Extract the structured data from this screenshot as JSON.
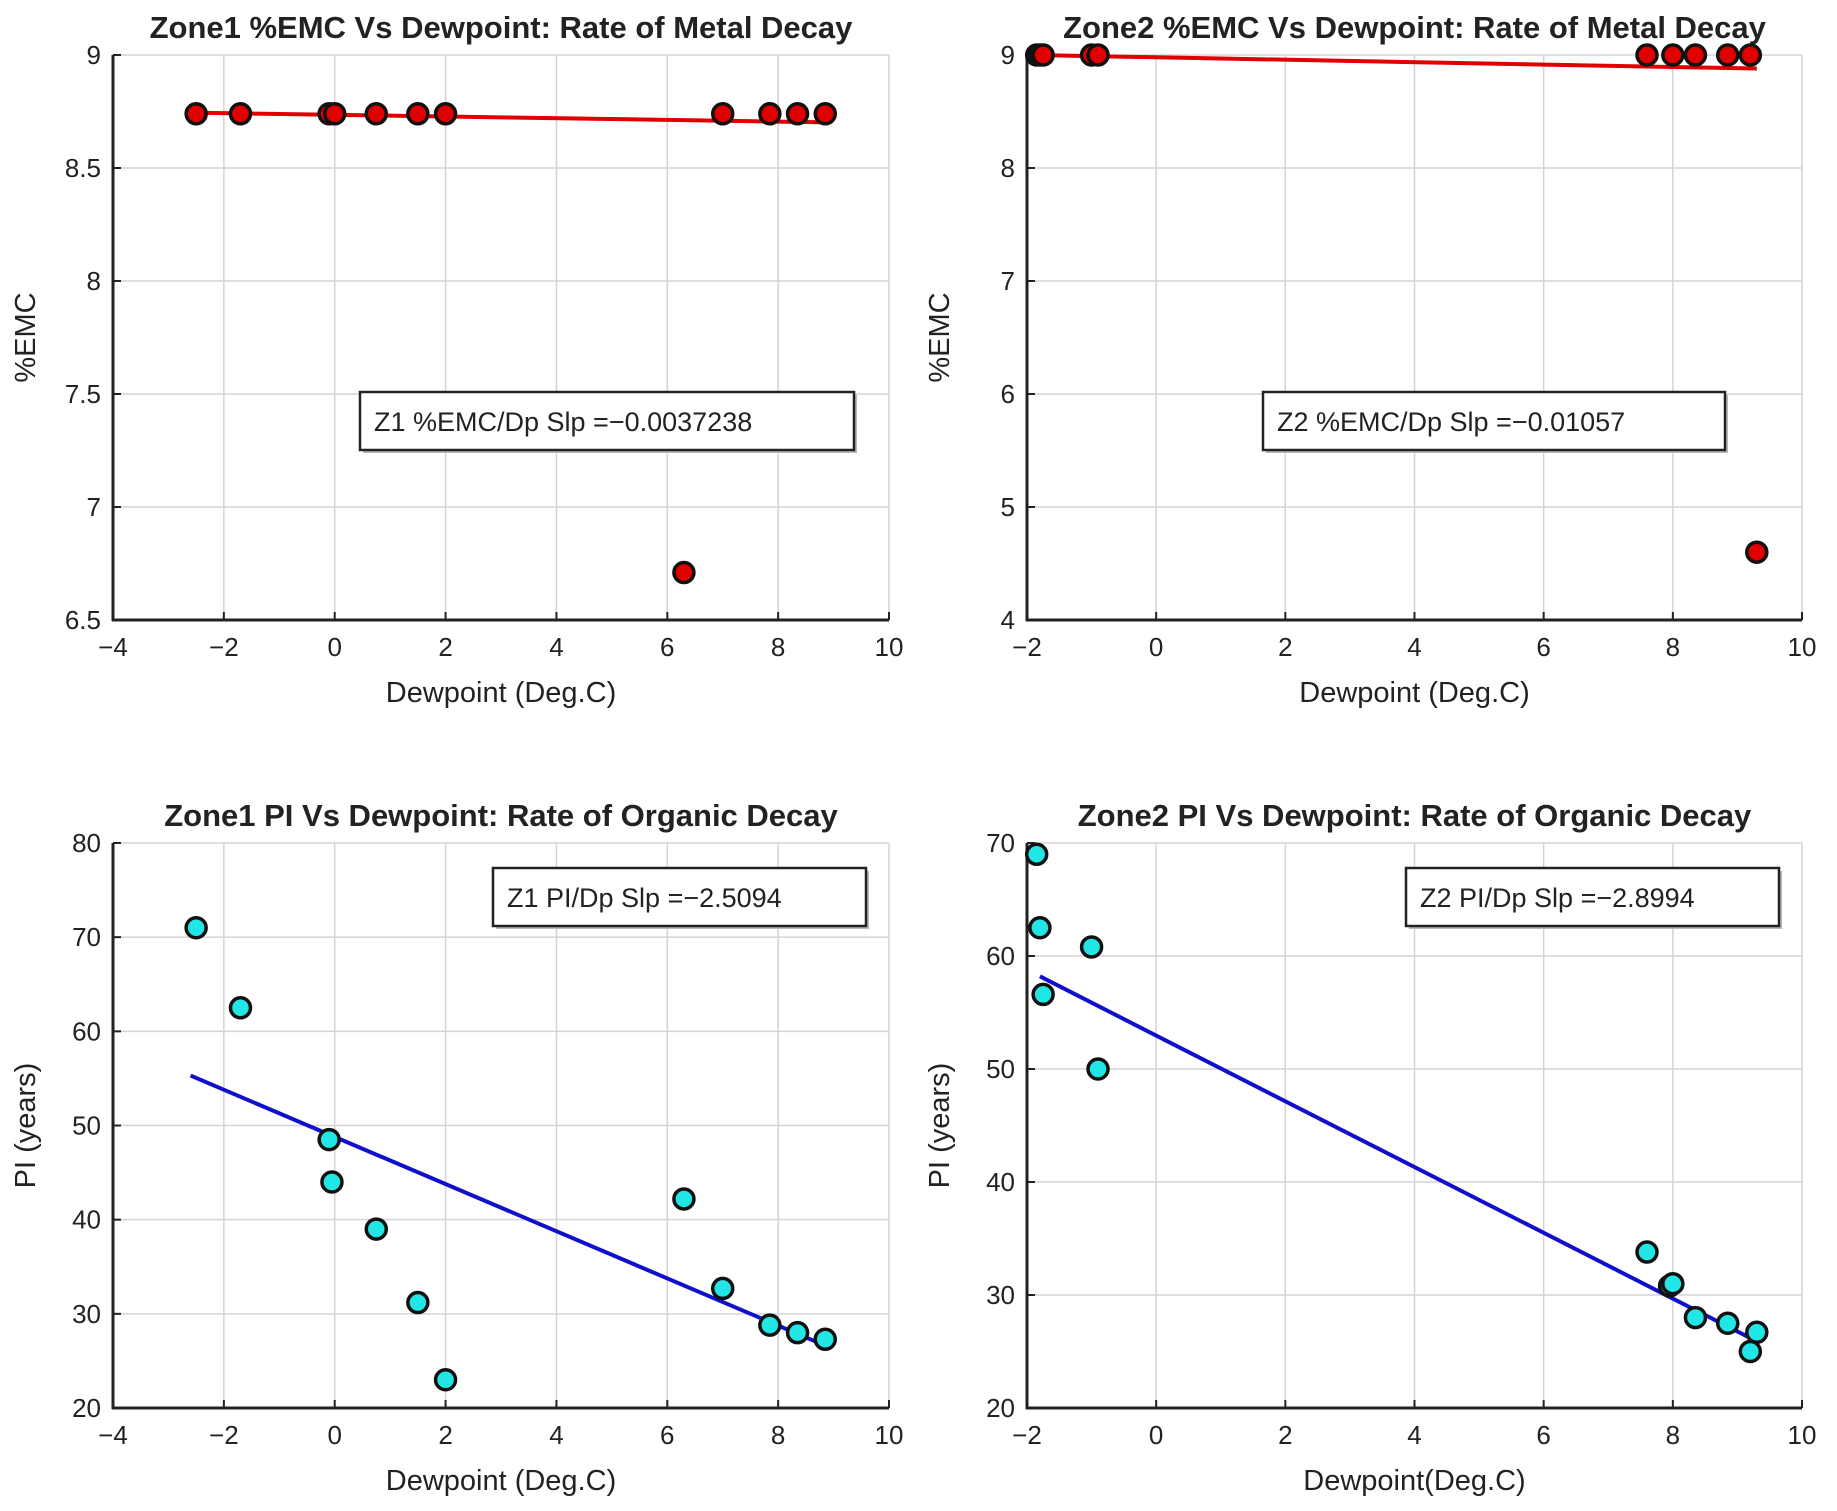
{
  "colors": {
    "metal_marker": "#e00000",
    "metal_line": "#e00000",
    "organic_marker": "#22e5e5",
    "organic_line": "#1010cc",
    "axis": "#222222",
    "grid": "#d4d4d4"
  },
  "chart_data": [
    {
      "id": "z1-emc",
      "type": "scatter",
      "title": "Zone1 %EMC Vs Dewpoint: Rate of Metal Decay",
      "xlabel": "Dewpoint (Deg.C)",
      "ylabel": "%EMC",
      "xlim": [
        -4,
        10
      ],
      "ylim": [
        6.5,
        9
      ],
      "xticks": [
        -4,
        -2,
        0,
        2,
        4,
        6,
        8,
        10
      ],
      "yticks": [
        6.5,
        7,
        7.5,
        8,
        8.5,
        9
      ],
      "xtick_labels": [
        "−4",
        "−2",
        "0",
        "2",
        "4",
        "6",
        "8",
        "10"
      ],
      "ytick_labels": [
        "6.5",
        "7",
        "7.5",
        "8",
        "8.5",
        "9"
      ],
      "grid": true,
      "marker_color_key": "metal_marker",
      "line_color_key": "metal_line",
      "points": {
        "x": [
          -2.5,
          -1.7,
          -0.1,
          0,
          0.75,
          1.5,
          2.0,
          6.3,
          7.0,
          7.85,
          8.35,
          8.85
        ],
        "y": [
          8.74,
          8.74,
          8.74,
          8.74,
          8.74,
          8.74,
          8.74,
          6.71,
          8.74,
          8.74,
          8.74,
          8.74
        ]
      },
      "fit_line": {
        "x": [
          -2.6,
          8.9
        ],
        "y": [
          8.745,
          8.702
        ]
      },
      "annotation": {
        "text": "Z1 %EMC/Dp Slp =−0.0037238",
        "position": "center-right"
      }
    },
    {
      "id": "z2-emc",
      "type": "scatter",
      "title": "Zone2 %EMC Vs Dewpoint: Rate of Metal Decay",
      "xlabel": "Dewpoint (Deg.C)",
      "ylabel": "%EMC",
      "xlim": [
        -2,
        10
      ],
      "ylim": [
        4,
        9
      ],
      "xticks": [
        -2,
        0,
        2,
        4,
        6,
        8,
        10
      ],
      "yticks": [
        4,
        5,
        6,
        7,
        8,
        9
      ],
      "xtick_labels": [
        "−2",
        "0",
        "2",
        "4",
        "6",
        "8",
        "10"
      ],
      "ytick_labels": [
        "4",
        "5",
        "6",
        "7",
        "8",
        "9"
      ],
      "grid": true,
      "marker_color_key": "metal_marker",
      "line_color_key": "metal_line",
      "points": {
        "x": [
          -1.85,
          -1.8,
          -1.75,
          -1.0,
          -0.9,
          7.6,
          8.0,
          8.35,
          8.85,
          9.2,
          9.3
        ],
        "y": [
          9.0,
          9.0,
          9.0,
          9.0,
          9.0,
          9.0,
          9.0,
          9.0,
          9.0,
          9.0,
          4.6
        ]
      },
      "fit_line": {
        "x": [
          -1.9,
          9.3
        ],
        "y": [
          9.0,
          8.88
        ]
      },
      "annotation": {
        "text": "Z2 %EMC/Dp Slp =−0.01057",
        "position": "center-right"
      }
    },
    {
      "id": "z1-pi",
      "type": "scatter",
      "title": "Zone1 PI Vs Dewpoint: Rate of Organic Decay",
      "xlabel": "Dewpoint (Deg.C)",
      "ylabel": "PI (years)",
      "xlim": [
        -4,
        10
      ],
      "ylim": [
        20,
        80
      ],
      "xticks": [
        -4,
        -2,
        0,
        2,
        4,
        6,
        8,
        10
      ],
      "yticks": [
        20,
        30,
        40,
        50,
        60,
        70,
        80
      ],
      "xtick_labels": [
        "−4",
        "−2",
        "0",
        "2",
        "4",
        "6",
        "8",
        "10"
      ],
      "ytick_labels": [
        "20",
        "30",
        "40",
        "50",
        "60",
        "70",
        "80"
      ],
      "grid": true,
      "marker_color_key": "organic_marker",
      "line_color_key": "organic_line",
      "points": {
        "x": [
          -2.5,
          -1.7,
          -0.1,
          -0.05,
          0.75,
          1.5,
          2.0,
          6.3,
          7.0,
          7.85,
          8.35,
          8.85
        ],
        "y": [
          71,
          62.5,
          48.5,
          44,
          39,
          31.2,
          23,
          42.2,
          32.7,
          28.8,
          28,
          27.3
        ]
      },
      "fit_line": {
        "x": [
          -2.6,
          8.9
        ],
        "y": [
          55.3,
          26.5
        ]
      },
      "annotation": {
        "text": "Z1 PI/Dp Slp =−2.5094",
        "position": "top-right"
      }
    },
    {
      "id": "z2-pi",
      "type": "scatter",
      "title": "Zone2 PI Vs Dewpoint: Rate of Organic Decay",
      "xlabel": "Dewpoint(Deg.C)",
      "ylabel": "PI (years)",
      "xlim": [
        -2,
        10
      ],
      "ylim": [
        20,
        70
      ],
      "xticks": [
        -2,
        0,
        2,
        4,
        6,
        8,
        10
      ],
      "yticks": [
        20,
        30,
        40,
        50,
        60,
        70
      ],
      "xtick_labels": [
        "−2",
        "0",
        "2",
        "4",
        "6",
        "8",
        "10"
      ],
      "ytick_labels": [
        "20",
        "30",
        "40",
        "50",
        "60",
        "70"
      ],
      "grid": true,
      "marker_color_key": "organic_marker",
      "line_color_key": "organic_line",
      "points": {
        "x": [
          -1.85,
          -1.8,
          -1.75,
          -1.0,
          -0.9,
          7.6,
          7.95,
          8.0,
          8.35,
          8.85,
          9.2,
          9.3
        ],
        "y": [
          69,
          62.5,
          56.6,
          60.8,
          50,
          33.8,
          30.8,
          31,
          28,
          27.5,
          25,
          26.7
        ]
      },
      "fit_line": {
        "x": [
          -1.8,
          9.3
        ],
        "y": [
          58.2,
          25.9
        ]
      },
      "annotation": {
        "text": "Z2 PI/Dp Slp =−2.8994",
        "position": "top-right"
      }
    }
  ]
}
